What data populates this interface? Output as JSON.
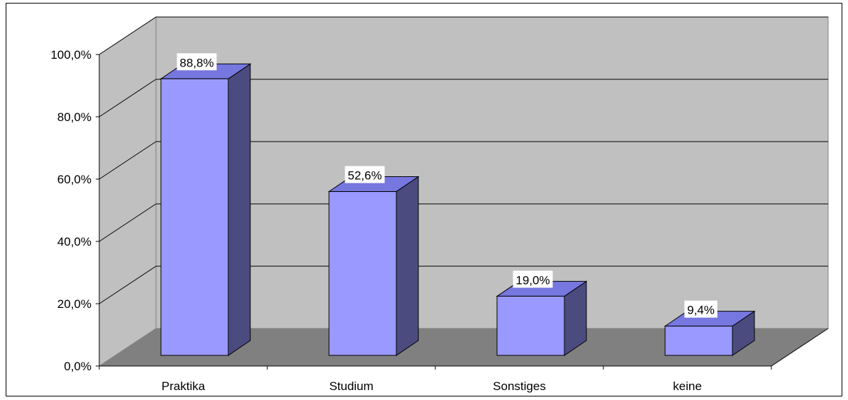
{
  "chart_data": {
    "type": "bar",
    "categories": [
      "Praktika",
      "Studium",
      "Sonstiges",
      "keine"
    ],
    "values": [
      88.8,
      52.6,
      19.0,
      9.4
    ],
    "data_labels": [
      "88,8%",
      "52,6%",
      "19,0%",
      "9,4%"
    ],
    "title": "",
    "xlabel": "",
    "ylabel": "",
    "ylim": [
      0,
      100
    ],
    "yticks": [
      0,
      20,
      40,
      60,
      80,
      100
    ],
    "ytick_labels": [
      "0,0%",
      "20,0%",
      "40,0%",
      "60,0%",
      "80,0%",
      "100,0%"
    ],
    "grid": true,
    "legend": "none",
    "three_d": true,
    "colors": {
      "bar_front": "#9999ff",
      "bar_top": "#7777e0",
      "bar_side": "#4b4b80",
      "back_wall": "#c0c0c0",
      "side_wall": "#c0c0c0",
      "floor": "#808080",
      "gridline": "#000000"
    }
  }
}
